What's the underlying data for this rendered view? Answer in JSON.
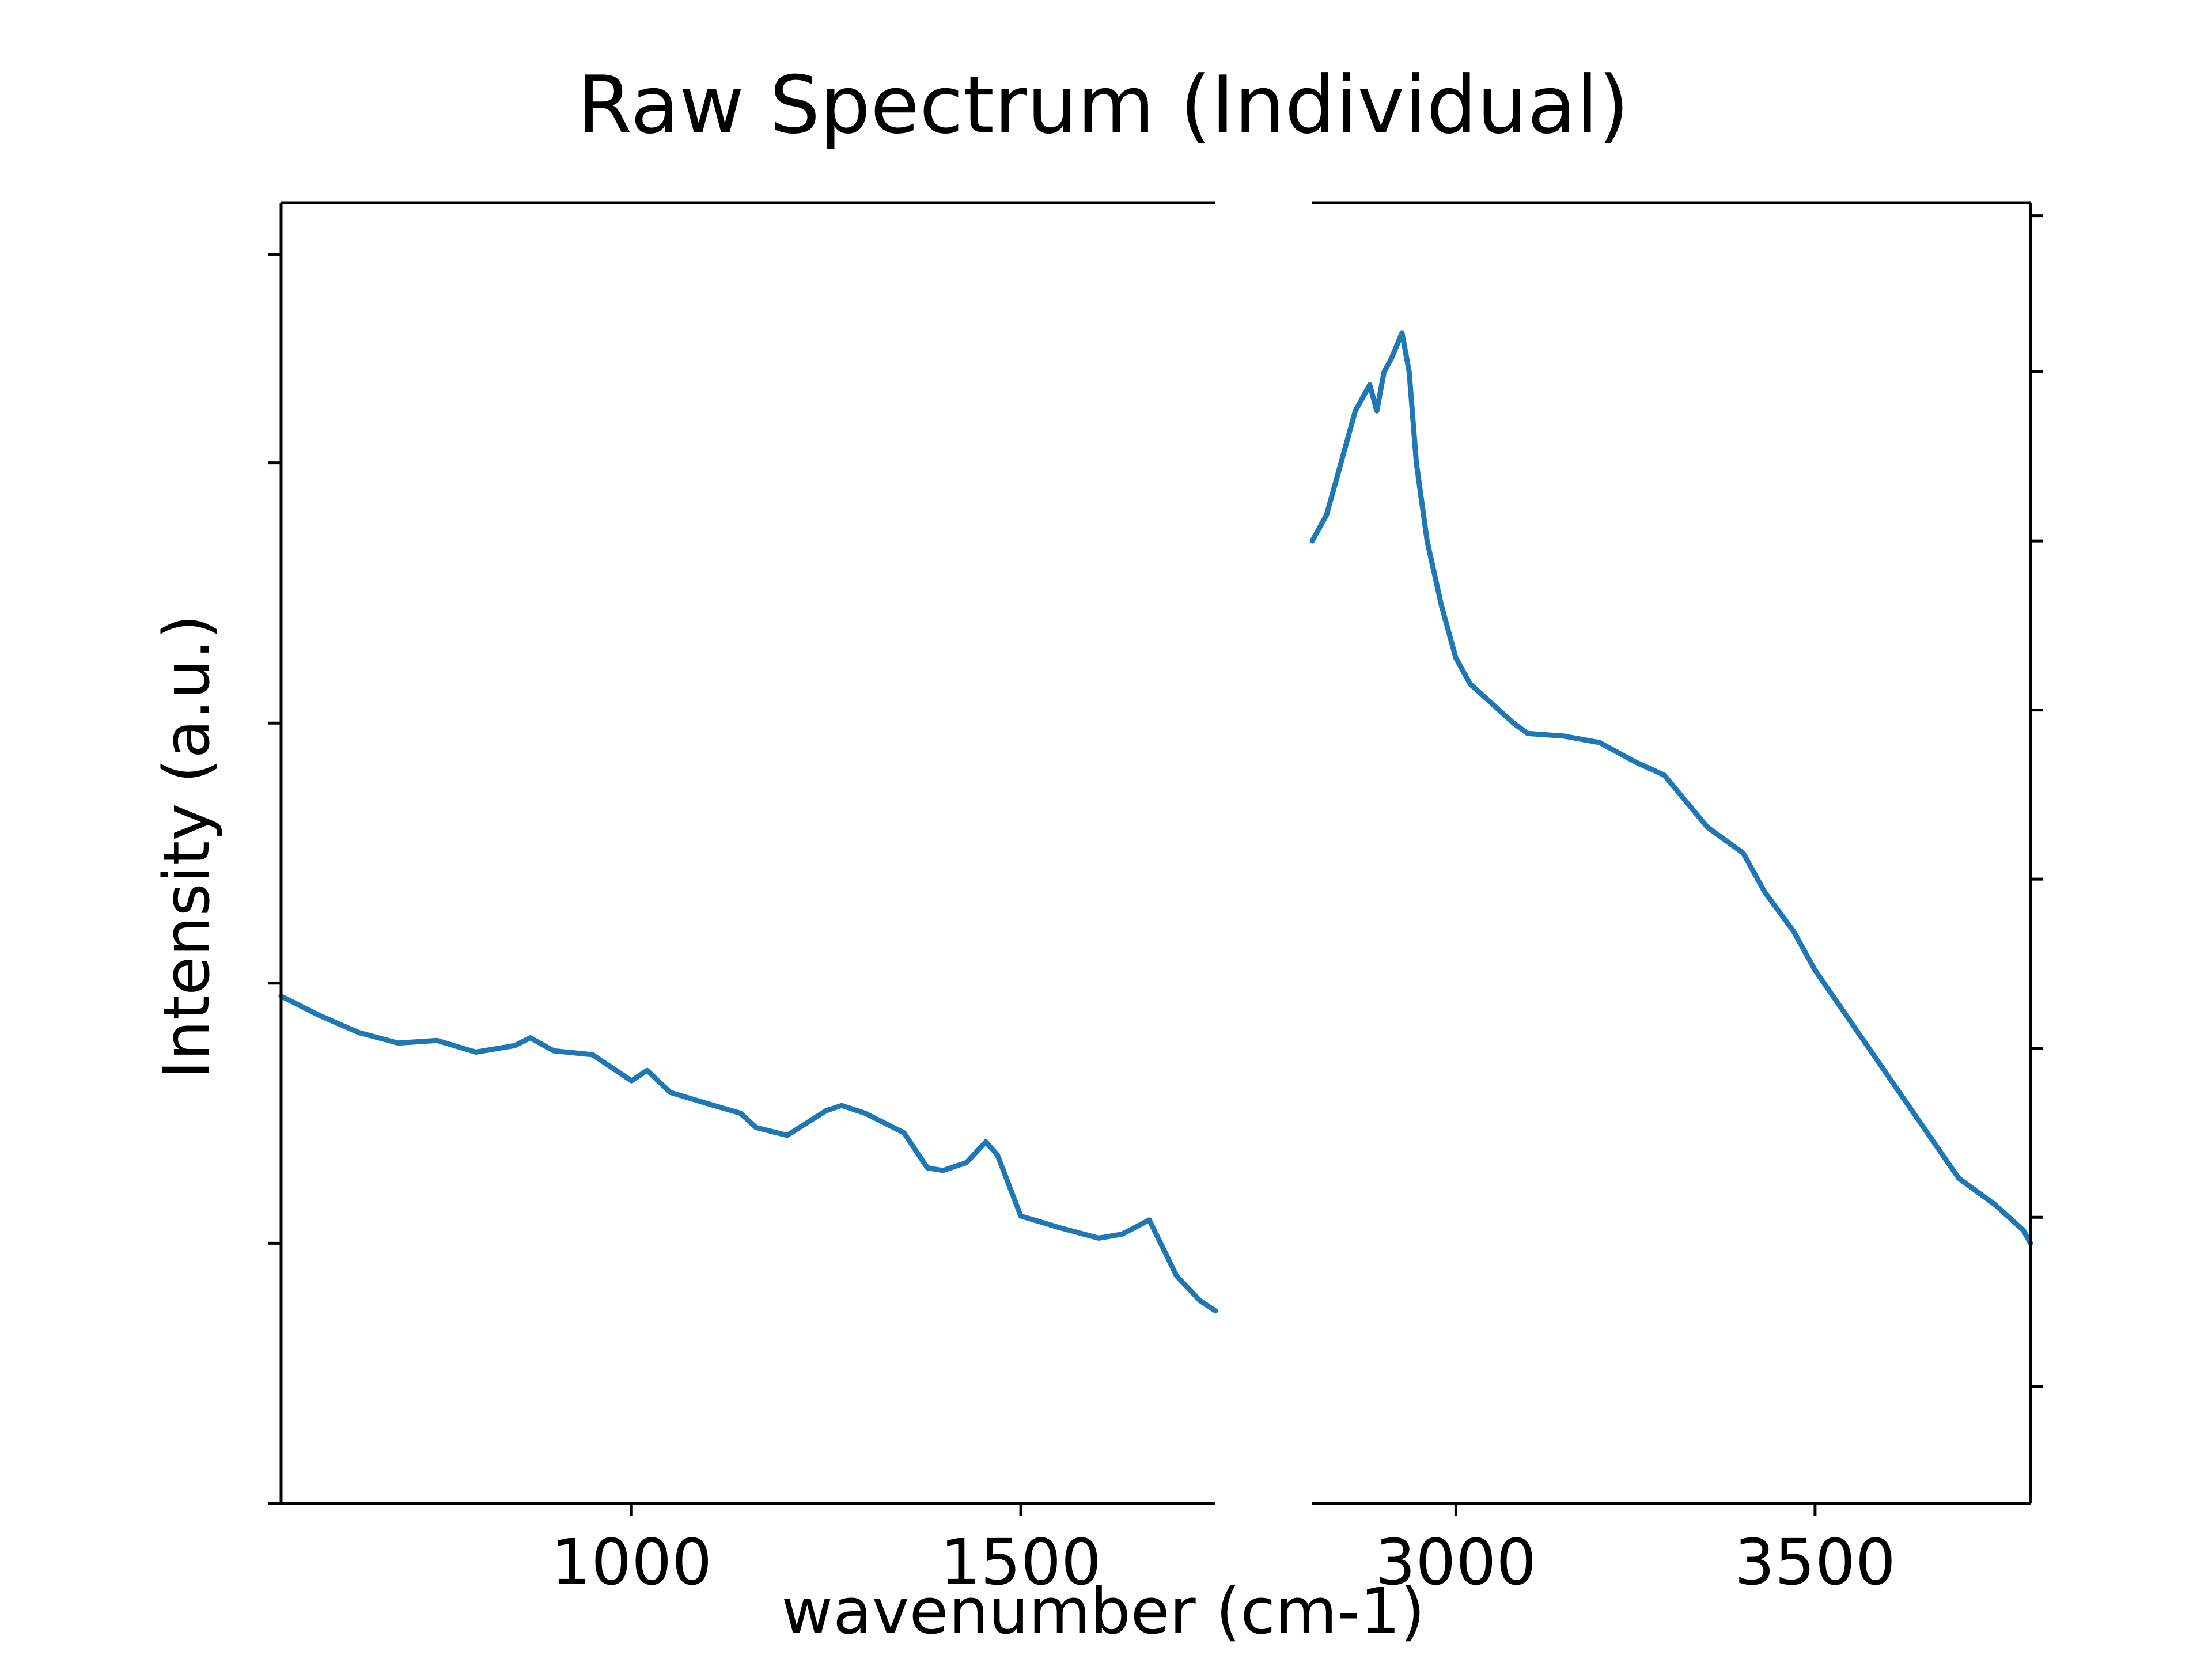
{
  "chart_data": {
    "type": "line",
    "title": "Raw Spectrum (Individual)",
    "xlabel": "wavenumber (cm-1)",
    "ylabel": "Intensity (a.u.)",
    "grid": false,
    "legend": "none",
    "line_color": "#1f77b4",
    "panels": [
      {
        "name": "fingerprint",
        "xlim": [
          550,
          1750
        ],
        "ylim": [
          0.0,
          1.0
        ],
        "y_axis_side": "left",
        "xticks": [
          1000,
          1500
        ],
        "xtick_labels": [
          "1000",
          "1500"
        ],
        "yticks": [
          0.0,
          0.2,
          0.4,
          0.6,
          0.8,
          0.96
        ],
        "ytick_labels": [
          "",
          "",
          "",
          "",
          "",
          ""
        ],
        "series": [
          {
            "x": [
              550,
              600,
              650,
              700,
              750,
              800,
              850,
              870,
              900,
              950,
              1000,
              1020,
              1050,
              1100,
              1140,
              1160,
              1200,
              1250,
              1270,
              1300,
              1350,
              1380,
              1400,
              1430,
              1455,
              1470,
              1500,
              1550,
              1600,
              1630,
              1665,
              1700,
              1730,
              1750
            ],
            "y": [
              0.39,
              0.375,
              0.362,
              0.354,
              0.356,
              0.347,
              0.352,
              0.358,
              0.348,
              0.345,
              0.325,
              0.333,
              0.316,
              0.307,
              0.3,
              0.289,
              0.283,
              0.302,
              0.306,
              0.3,
              0.285,
              0.258,
              0.256,
              0.262,
              0.278,
              0.268,
              0.221,
              0.212,
              0.204,
              0.207,
              0.218,
              0.175,
              0.156,
              0.148
            ]
          }
        ]
      },
      {
        "name": "high-wavenumber",
        "xlim": [
          2800,
          3800
        ],
        "ylim": [
          0.0,
          1.0
        ],
        "y_axis_side": "right",
        "xticks": [
          3000,
          3500
        ],
        "xtick_labels": [
          "3000",
          "3500"
        ],
        "yticks": [
          0.09,
          0.22,
          0.35,
          0.48,
          0.61,
          0.74,
          0.87,
          0.99
        ],
        "ytick_labels": [
          "",
          "",
          "",
          "",
          "",
          "",
          "",
          ""
        ],
        "series": [
          {
            "x": [
              2800,
              2820,
              2840,
              2860,
              2880,
              2890,
              2900,
              2910,
              2925,
              2935,
              2945,
              2960,
              2980,
              3000,
              3020,
              3050,
              3080,
              3100,
              3150,
              3200,
              3250,
              3290,
              3320,
              3350,
              3400,
              3430,
              3470,
              3500,
              3550,
              3600,
              3650,
              3700,
              3750,
              3790,
              3800
            ],
            "y": [
              0.74,
              0.76,
              0.8,
              0.84,
              0.86,
              0.84,
              0.87,
              0.88,
              0.9,
              0.87,
              0.8,
              0.74,
              0.69,
              0.65,
              0.63,
              0.615,
              0.6,
              0.592,
              0.59,
              0.585,
              0.57,
              0.56,
              0.54,
              0.52,
              0.5,
              0.47,
              0.44,
              0.41,
              0.37,
              0.33,
              0.29,
              0.25,
              0.23,
              0.21,
              0.2
            ]
          }
        ]
      }
    ]
  }
}
